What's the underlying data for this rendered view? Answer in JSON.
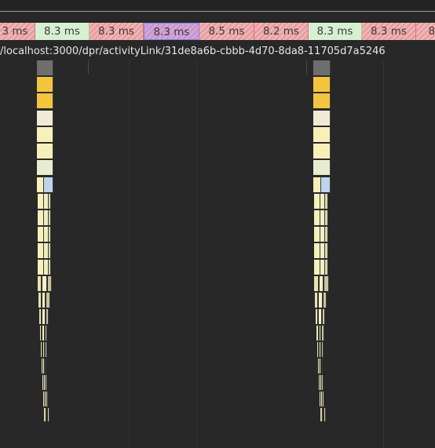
{
  "frames_track": {
    "frames": [
      {
        "label": "3 ms",
        "state": "dropped"
      },
      {
        "label": "8.3 ms",
        "state": "good"
      },
      {
        "label": "8.3 ms",
        "state": "dropped"
      },
      {
        "label": "8.3 ms",
        "state": "selected"
      },
      {
        "label": "8.5 ms",
        "state": "dropped"
      },
      {
        "label": "8.2 ms",
        "state": "dropped"
      },
      {
        "label": "8.3 ms",
        "state": "good"
      },
      {
        "label": "8.3 ms",
        "state": "dropped"
      },
      {
        "label": "8.",
        "state": "dropped"
      }
    ]
  },
  "network": {
    "url_label": "/localhost:3000/dpr/activityLink/31de8a6b-cbbb-4d70-8da8-11705d7a5246"
  },
  "colors": {
    "background": "#282828",
    "frame_good": "#d7f0d1",
    "frame_dropped": "#f2b4b4",
    "frame_selected": "#d4a6d8",
    "task_grey": "#6e6e6e",
    "scripting_yellow": "#f2c53d",
    "light_yellow": "#f7f0b8",
    "pale_blue": "#bcd4ee"
  }
}
